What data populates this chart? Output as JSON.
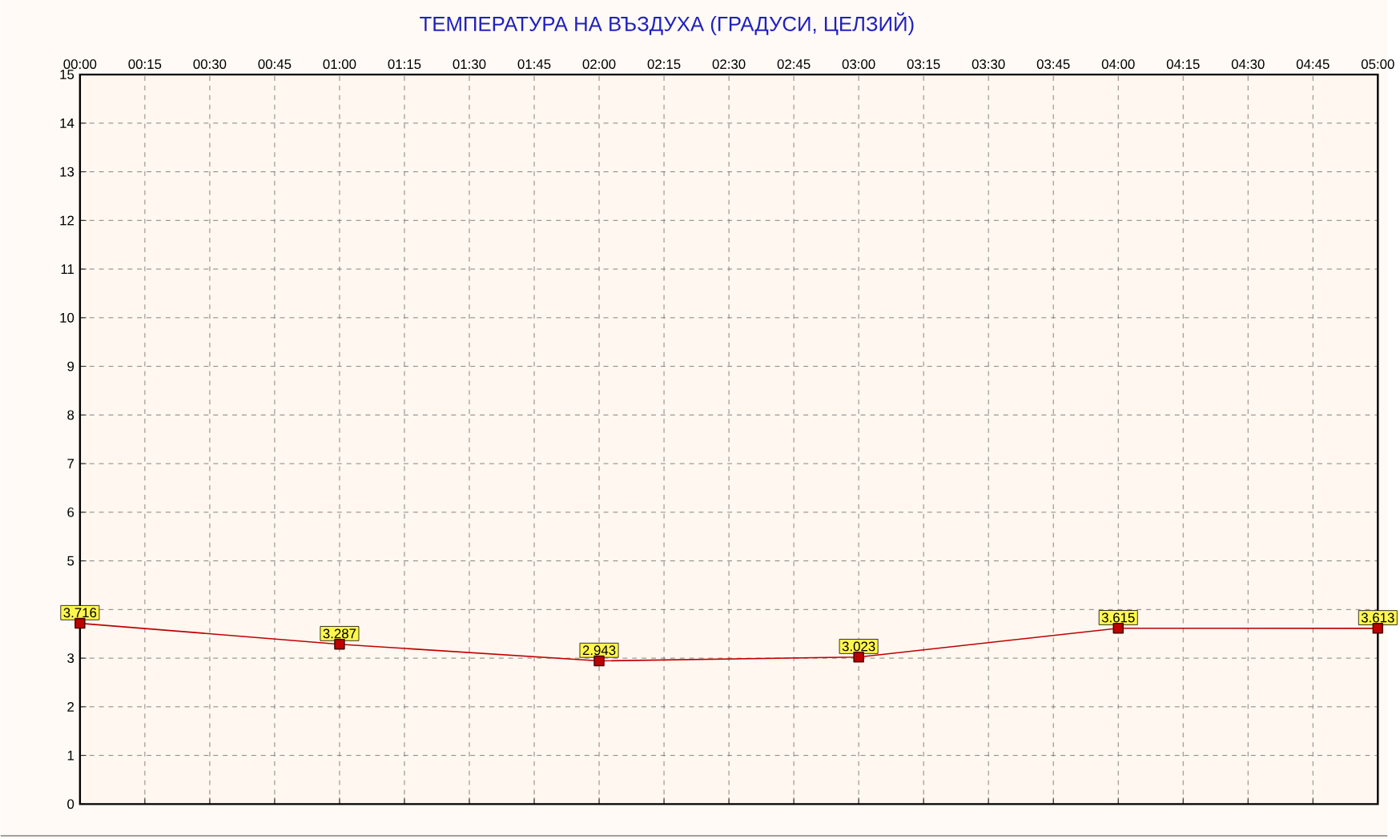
{
  "chart_data": {
    "type": "line",
    "title": "ТЕМПЕРАТУРА НА ВЪЗДУХА  (ГРАДУСИ, ЦЕЛЗИЙ)",
    "x": [
      0,
      1,
      2,
      3,
      4,
      5
    ],
    "values": [
      3.716,
      3.287,
      2.943,
      3.023,
      3.615,
      3.613
    ],
    "color": "#c00000",
    "xlim": [
      0,
      5
    ],
    "xticks": [
      {
        "value": 0,
        "label": "00:00"
      },
      {
        "value": 0.25,
        "label": "00:15"
      },
      {
        "value": 0.5,
        "label": "00:30"
      },
      {
        "value": 0.75,
        "label": "00:45"
      },
      {
        "value": 1,
        "label": "01:00"
      },
      {
        "value": 1.25,
        "label": "01:15"
      },
      {
        "value": 1.5,
        "label": "01:30"
      },
      {
        "value": 1.75,
        "label": "01:45"
      },
      {
        "value": 2,
        "label": "02:00"
      },
      {
        "value": 2.25,
        "label": "02:15"
      },
      {
        "value": 2.5,
        "label": "02:30"
      },
      {
        "value": 2.75,
        "label": "02:45"
      },
      {
        "value": 3,
        "label": "03:00"
      },
      {
        "value": 3.25,
        "label": "03:15"
      },
      {
        "value": 3.5,
        "label": "03:30"
      },
      {
        "value": 3.75,
        "label": "03:45"
      },
      {
        "value": 4,
        "label": "04:00"
      },
      {
        "value": 4.25,
        "label": "04:15"
      },
      {
        "value": 4.5,
        "label": "04:30"
      },
      {
        "value": 4.75,
        "label": "04:45"
      },
      {
        "value": 5,
        "label": "05:00"
      }
    ],
    "ylim": [
      0,
      15
    ],
    "yticks": [
      0,
      1,
      2,
      3,
      {
        "value": 4,
        "label": null
      },
      5,
      6,
      7,
      8,
      9,
      10,
      11,
      12,
      13,
      14,
      15
    ],
    "grid": true,
    "marker": "square",
    "line_style": "solid",
    "data_labels": true
  }
}
